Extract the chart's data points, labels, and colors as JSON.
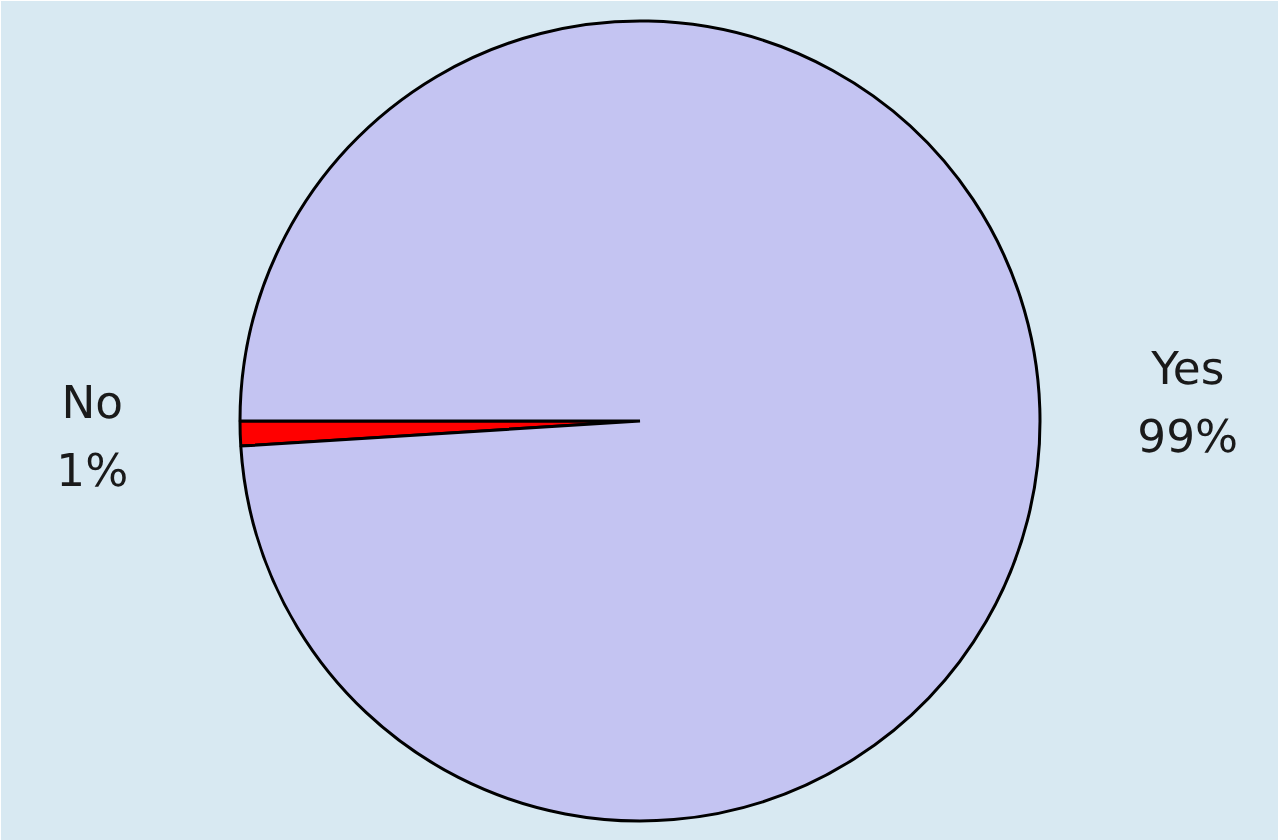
{
  "chart_data": {
    "type": "pie",
    "categories": [
      "No",
      "Yes"
    ],
    "values": [
      1,
      99
    ],
    "value_labels": [
      "1%",
      "99%"
    ],
    "colors": [
      "#ff0000",
      "#c4c4f2"
    ]
  }
}
